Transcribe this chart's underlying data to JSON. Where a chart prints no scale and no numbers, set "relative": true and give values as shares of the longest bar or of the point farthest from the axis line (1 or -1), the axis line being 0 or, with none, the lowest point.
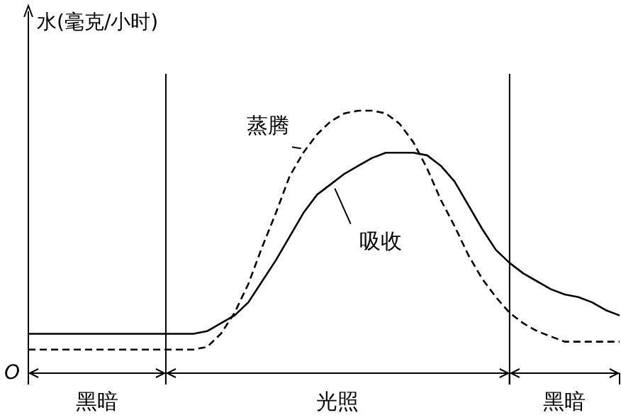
{
  "chart_data": {
    "type": "line",
    "relative": true,
    "ylabel": "水(毫克/小时)",
    "annotations": [
      "O",
      "黑暗",
      "光照",
      "黑暗"
    ],
    "categories": [
      null,
      null,
      null,
      null,
      null,
      null,
      null,
      null,
      null,
      null,
      null,
      null,
      null,
      null,
      null,
      null,
      null,
      null,
      null,
      null,
      null,
      null,
      null,
      null,
      null,
      null,
      null,
      null,
      null,
      null,
      null,
      null,
      null,
      null,
      null,
      null,
      null,
      null,
      null,
      null,
      null,
      null,
      null,
      null
    ],
    "series": [
      {
        "name": "蒸腾",
        "color": "#000000",
        "line_style": "dashed",
        "values": [
          0.09,
          0.09,
          0.09,
          0.09,
          0.09,
          0.09,
          0.09,
          0.09,
          0.09,
          0.09,
          0.09,
          0.09,
          0.09,
          0.1,
          0.15,
          0.23,
          0.34,
          0.48,
          0.61,
          0.75,
          0.84,
          0.91,
          0.96,
          0.99,
          1,
          1,
          0.99,
          0.95,
          0.88,
          0.78,
          0.66,
          0.56,
          0.45,
          0.36,
          0.29,
          0.23,
          0.19,
          0.16,
          0.14,
          0.12,
          0.12,
          0.12,
          0.12,
          0.12
        ]
      },
      {
        "name": "吸收",
        "color": "#000000",
        "line_style": "solid",
        "values": [
          0.15,
          0.15,
          0.15,
          0.15,
          0.15,
          0.15,
          0.15,
          0.15,
          0.15,
          0.15,
          0.15,
          0.15,
          0.15,
          0.16,
          0.19,
          0.22,
          0.27,
          0.35,
          0.43,
          0.52,
          0.61,
          0.68,
          0.72,
          0.76,
          0.79,
          0.82,
          0.84,
          0.84,
          0.84,
          0.83,
          0.79,
          0.73,
          0.64,
          0.55,
          0.47,
          0.42,
          0.38,
          0.35,
          0.32,
          0.3,
          0.29,
          0.27,
          0.24,
          0.22
        ]
      }
    ]
  }
}
